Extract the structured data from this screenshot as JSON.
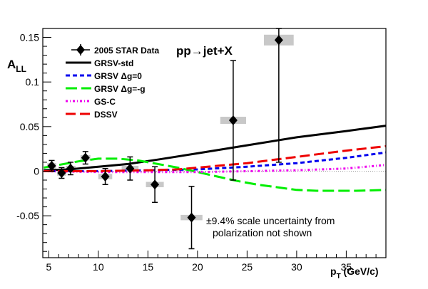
{
  "chart_data": {
    "type": "scatter",
    "title": "",
    "xlabel": "p",
    "xlabel_sub": "T",
    "xlabel_unit": " (GeV/c)",
    "ylabel": "A",
    "ylabel_sub": "LL",
    "xlim": [
      4.4,
      39.0
    ],
    "ylim": [
      -0.097,
      0.16
    ],
    "x_ticks": [
      5,
      10,
      15,
      20,
      25,
      30,
      35
    ],
    "y_ticks": [
      -0.05,
      0,
      0.05,
      0.1,
      0.15
    ],
    "y_tick_labels": [
      "-0.05",
      "0",
      "0.05",
      "0.1",
      "0.15"
    ],
    "process_label": "pp→jet+X",
    "note_lines": [
      "±9.4% scale uncertainty from",
      "polarization not shown"
    ],
    "legend_placement": "top-left",
    "data_series": {
      "name": "2005 STAR Data",
      "points": [
        {
          "x": 5.3,
          "y": 0.006,
          "err": 0.006,
          "sys_dx": 0.45,
          "sys_dy": 0.003
        },
        {
          "x": 6.3,
          "y": -0.002,
          "err": 0.006,
          "sys_dx": 0.45,
          "sys_dy": 0.003
        },
        {
          "x": 7.2,
          "y": 0.003,
          "err": 0.007,
          "sys_dx": 0.5,
          "sys_dy": 0.003
        },
        {
          "x": 8.7,
          "y": 0.015,
          "err": 0.007,
          "sys_dx": 0.5,
          "sys_dy": 0.003
        },
        {
          "x": 10.7,
          "y": -0.006,
          "err": 0.009,
          "sys_dx": 0.7,
          "sys_dy": 0.003
        },
        {
          "x": 13.2,
          "y": 0.003,
          "err": 0.013,
          "sys_dx": 0.85,
          "sys_dy": 0.003
        },
        {
          "x": 15.7,
          "y": -0.015,
          "err": 0.02,
          "sys_dx": 0.9,
          "sys_dy": 0.003
        },
        {
          "x": 19.4,
          "y": -0.052,
          "err": 0.035,
          "sys_dx": 1.1,
          "sys_dy": 0.003
        },
        {
          "x": 23.6,
          "y": 0.057,
          "err": 0.067,
          "sys_dx": 1.3,
          "sys_dy": 0.004
        },
        {
          "x": 28.2,
          "y": 0.147,
          "err": 0.137,
          "sys_dx": 1.5,
          "sys_dy": 0.006
        }
      ]
    },
    "curves": [
      {
        "name": "GRSV-std",
        "color": "#000000",
        "dash": "",
        "x": [
          4.5,
          7,
          10,
          13,
          16,
          20,
          25,
          30,
          35,
          39
        ],
        "y": [
          0.001,
          0.002,
          0.005,
          0.008,
          0.013,
          0.02,
          0.029,
          0.038,
          0.045,
          0.051
        ]
      },
      {
        "name": "GRSV Δg=0",
        "color": "#0000ee",
        "dash": "6,4",
        "x": [
          4.5,
          10,
          15,
          20,
          25,
          30,
          35,
          39
        ],
        "y": [
          0.0,
          0.0,
          0.001,
          0.002,
          0.005,
          0.009,
          0.015,
          0.021
        ]
      },
      {
        "name": "GRSV Δg=-g",
        "color": "#00ee00",
        "dash": "16,6",
        "x": [
          4.5,
          6,
          8,
          10,
          12,
          14,
          16,
          18,
          20,
          22,
          24,
          26,
          28,
          30,
          32,
          34,
          36,
          39
        ],
        "y": [
          0.004,
          0.007,
          0.011,
          0.014,
          0.014,
          0.012,
          0.008,
          0.004,
          -0.001,
          -0.006,
          -0.011,
          -0.015,
          -0.018,
          -0.021,
          -0.022,
          -0.022,
          -0.022,
          -0.021
        ]
      },
      {
        "name": "GS-C",
        "color": "#ee00ee",
        "dash": "3,3,1,3",
        "x": [
          4.5,
          10,
          15,
          20,
          25,
          30,
          35,
          39
        ],
        "y": [
          0.0,
          -0.001,
          -0.001,
          -0.001,
          0.0,
          0.001,
          0.003,
          0.007
        ]
      },
      {
        "name": "DSSV",
        "color": "#ee0000",
        "dash": "14,6",
        "x": [
          4.5,
          10,
          15,
          18,
          20,
          25,
          30,
          35,
          39
        ],
        "y": [
          0.0,
          0.0,
          0.001,
          0.002,
          0.004,
          0.009,
          0.016,
          0.023,
          0.028
        ]
      }
    ]
  }
}
